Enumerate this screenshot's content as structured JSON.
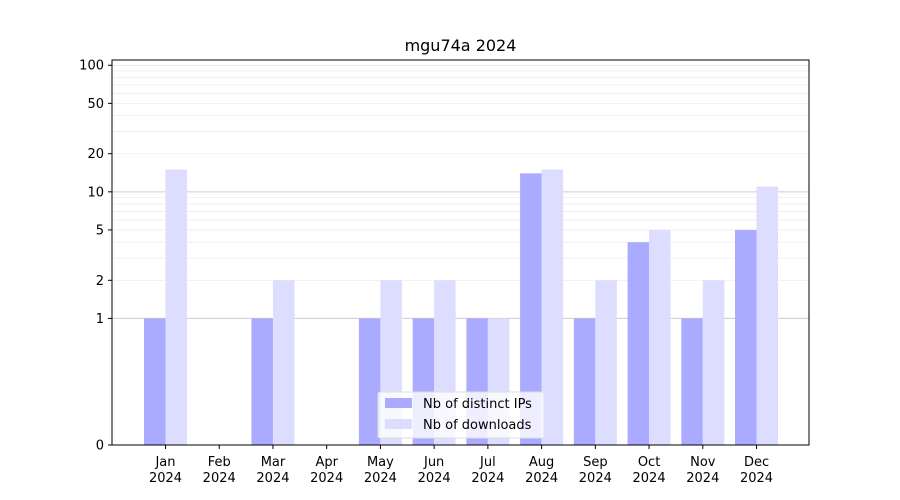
{
  "chart_data": {
    "type": "bar",
    "title": "mgu74a 2024",
    "xlabel": "",
    "ylabel": "",
    "yscale": "symlog",
    "ylim": [
      0,
      110
    ],
    "yticks": [
      0,
      1,
      2,
      5,
      10,
      20,
      50,
      100
    ],
    "grid": "horizontal",
    "legend_position": "bottom-center",
    "categories": [
      [
        "Jan",
        "2024"
      ],
      [
        "Feb",
        "2024"
      ],
      [
        "Mar",
        "2024"
      ],
      [
        "Apr",
        "2024"
      ],
      [
        "May",
        "2024"
      ],
      [
        "Jun",
        "2024"
      ],
      [
        "Jul",
        "2024"
      ],
      [
        "Aug",
        "2024"
      ],
      [
        "Sep",
        "2024"
      ],
      [
        "Oct",
        "2024"
      ],
      [
        "Nov",
        "2024"
      ],
      [
        "Dec",
        "2024"
      ]
    ],
    "series": [
      {
        "name": "Nb of distinct IPs",
        "color": "#aaaaff",
        "values": [
          1,
          0,
          1,
          0,
          1,
          1,
          1,
          14,
          1,
          4,
          1,
          5
        ]
      },
      {
        "name": "Nb of downloads",
        "color": "#ddddff",
        "values": [
          15,
          0,
          2,
          0,
          2,
          2,
          1,
          15,
          2,
          5,
          2,
          11
        ]
      }
    ]
  }
}
